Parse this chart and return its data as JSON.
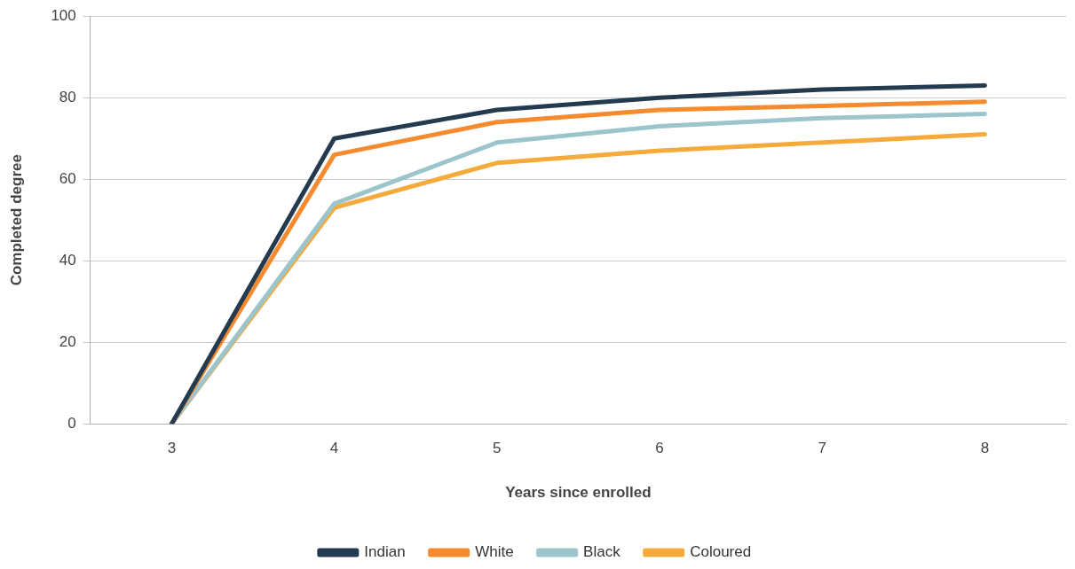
{
  "chart_data": {
    "type": "line",
    "xlabel": "Years since enrolled",
    "ylabel": "Completed degree",
    "categories": [
      "3",
      "4",
      "5",
      "6",
      "7",
      "8"
    ],
    "ylim": [
      0,
      100
    ],
    "yticks": [
      0,
      20,
      40,
      60,
      80,
      100
    ],
    "grid": "y",
    "legend": "bottom",
    "marker": "none",
    "line_style": "solid",
    "series": [
      {
        "name": "Indian",
        "color": "#243a4f",
        "values": [
          0,
          70,
          77,
          80,
          82,
          83
        ]
      },
      {
        "name": "White",
        "color": "#f58a2e",
        "values": [
          0,
          66,
          74,
          77,
          78,
          79
        ]
      },
      {
        "name": "Black",
        "color": "#9cc5cb",
        "values": [
          0,
          54,
          69,
          73,
          75,
          76
        ]
      },
      {
        "name": "Coloured",
        "color": "#f5ab3c",
        "values": [
          0,
          53,
          64,
          67,
          69,
          71
        ]
      }
    ]
  }
}
